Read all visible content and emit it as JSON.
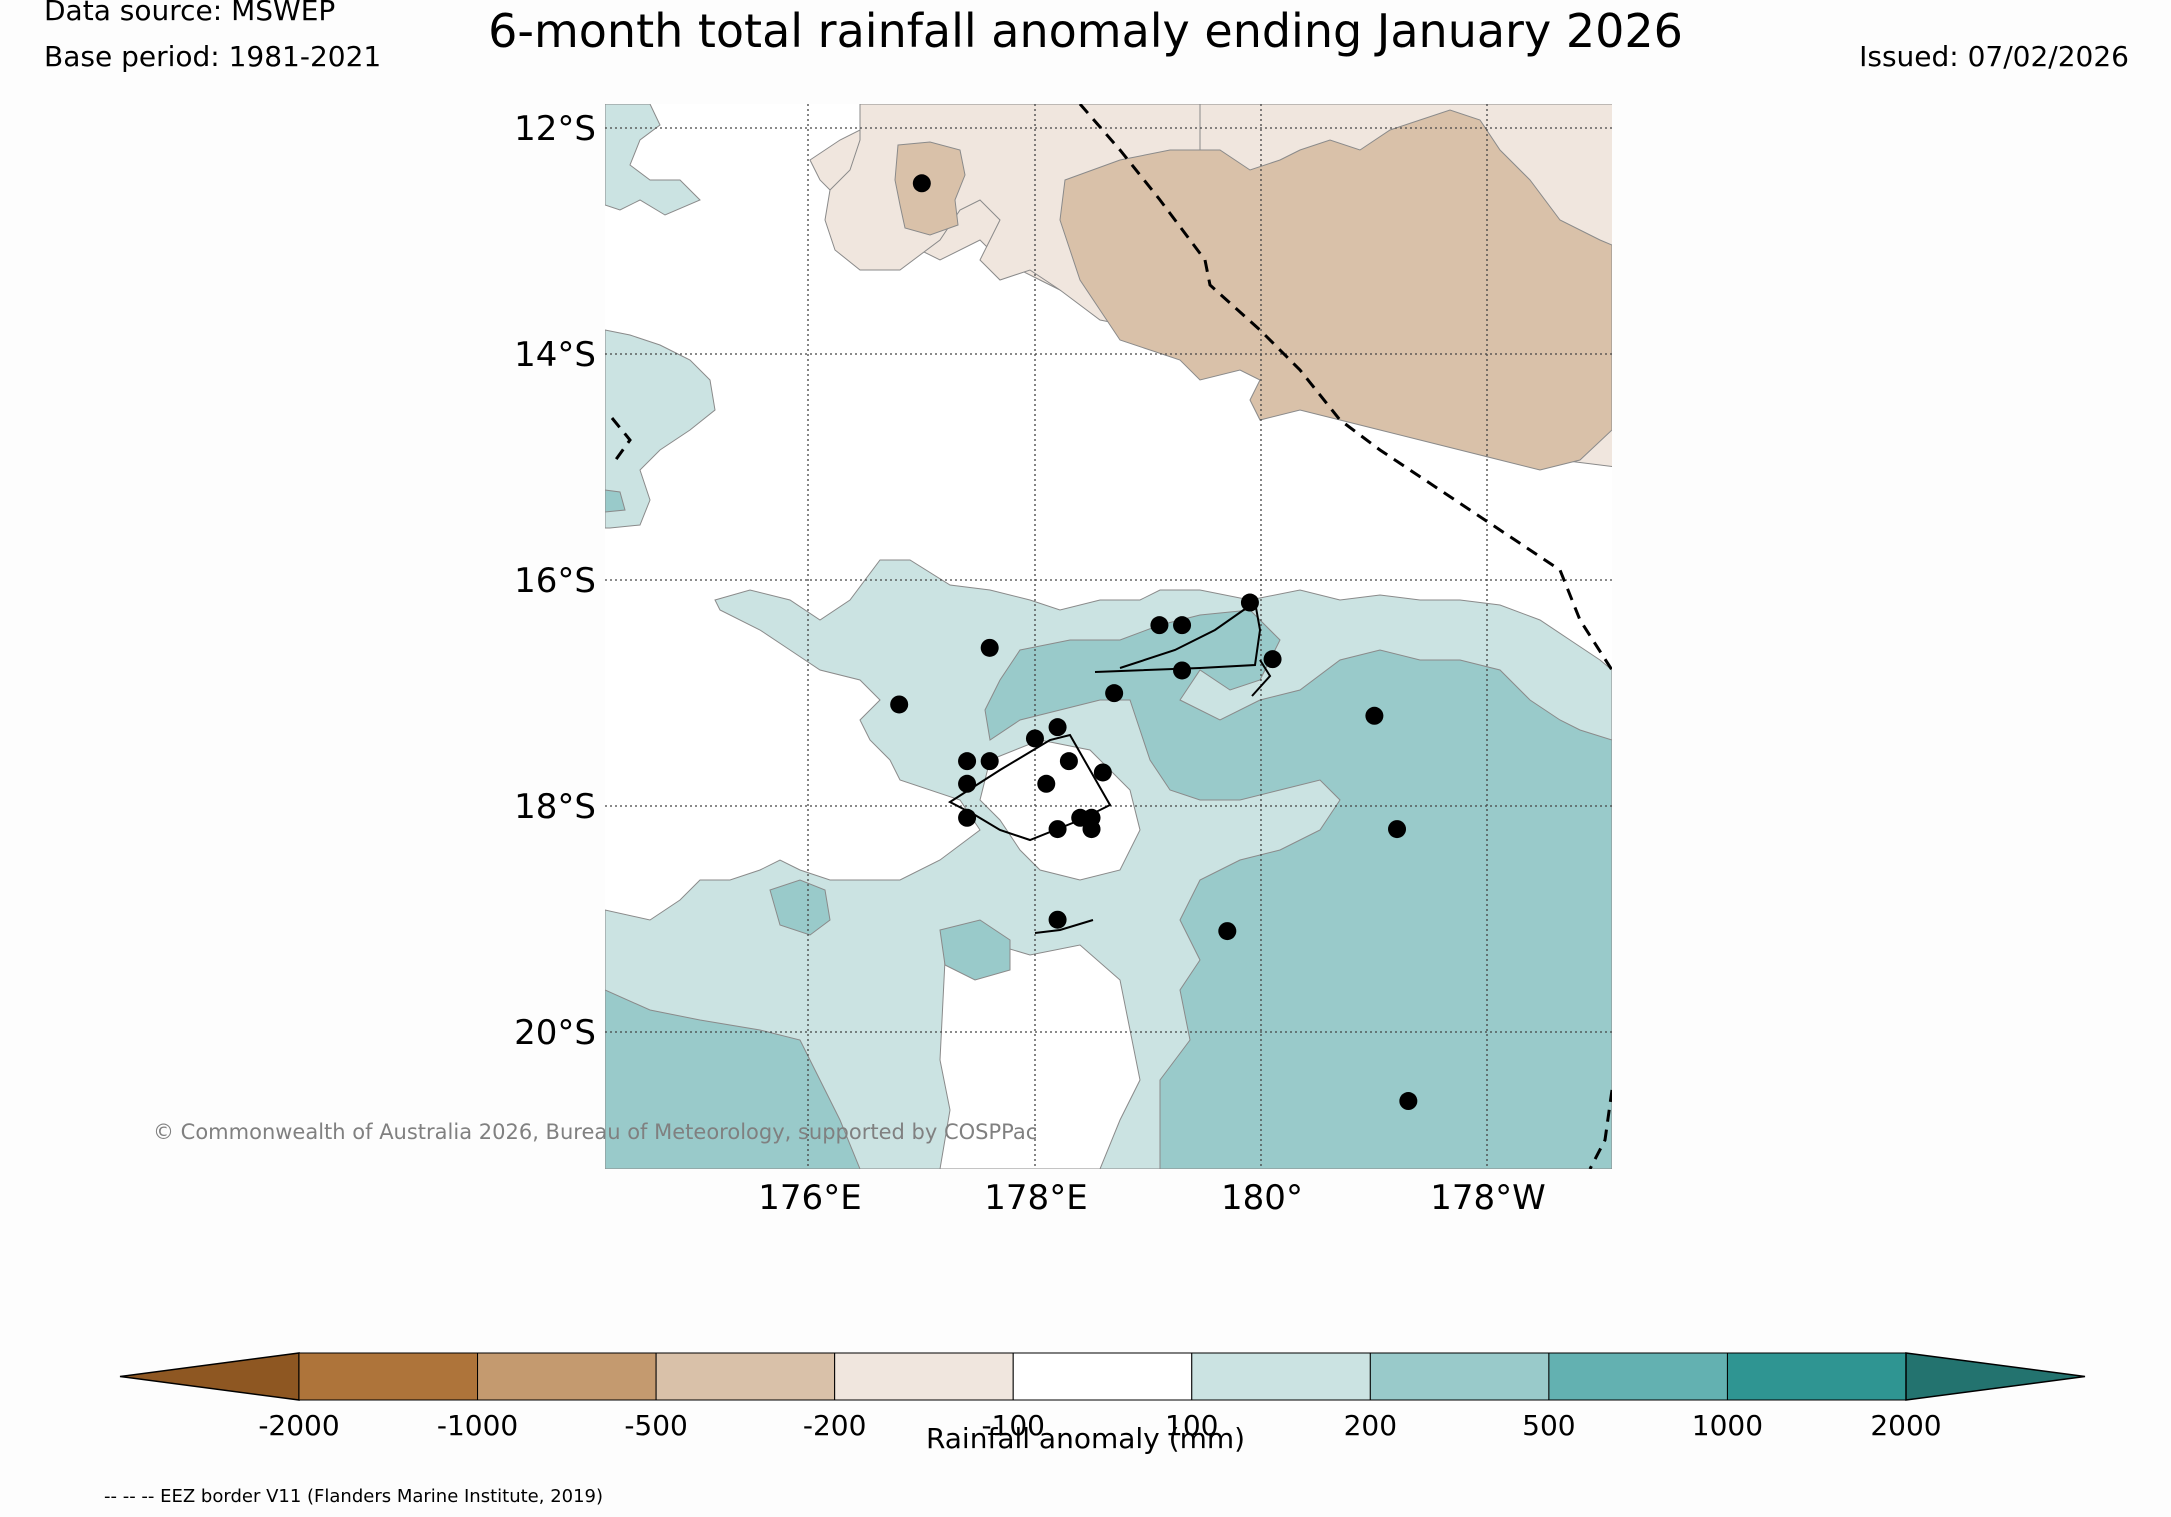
{
  "header": {
    "data_source": "Data source: MSWEP",
    "base_period": "Base period: 1981-2021",
    "title": "6-month total rainfall anomaly ending January 2026",
    "issued": "Issued: 07/02/2026"
  },
  "map": {
    "lat_labels": [
      "12°S",
      "14°S",
      "16°S",
      "18°S",
      "20°S"
    ],
    "lon_labels": [
      "176°E",
      "178°E",
      "180°",
      "178°W"
    ],
    "extent": {
      "lon_min": 174.2,
      "lon_max": 183.1,
      "lat_min": -21.2,
      "lat_max": -11.8
    },
    "stations_lonlat": [
      [
        177.0,
        -12.5
      ],
      [
        177.6,
        -16.6
      ],
      [
        176.8,
        -17.1
      ],
      [
        179.1,
        -16.4
      ],
      [
        179.3,
        -16.4
      ],
      [
        179.9,
        -16.2
      ],
      [
        180.1,
        -16.7
      ],
      [
        179.3,
        -16.8
      ],
      [
        178.7,
        -17.0
      ],
      [
        178.0,
        -17.4
      ],
      [
        178.2,
        -17.3
      ],
      [
        178.3,
        -17.6
      ],
      [
        178.1,
        -17.8
      ],
      [
        178.6,
        -17.7
      ],
      [
        177.4,
        -17.6
      ],
      [
        177.4,
        -17.8
      ],
      [
        177.6,
        -17.6
      ],
      [
        177.4,
        -18.1
      ],
      [
        178.4,
        -18.1
      ],
      [
        178.5,
        -18.1
      ],
      [
        178.5,
        -18.2
      ],
      [
        178.2,
        -18.2
      ],
      [
        178.2,
        -19.0
      ],
      [
        179.7,
        -19.1
      ],
      [
        181.0,
        -17.2
      ],
      [
        181.2,
        -18.2
      ],
      [
        181.3,
        -20.6
      ]
    ],
    "colors": {
      "neg200_100": "#f0e6de",
      "neg500_200": "#d9c1a9",
      "pos100_200": "#cbe3e2",
      "pos200_500": "#99caca"
    }
  },
  "copyright": "© Commonwealth of Australia 2026, Bureau of Meteorology, supported by COSPPac",
  "colorbar": {
    "label": "Rainfall anomaly (mm)",
    "ticks": [
      "-2000",
      "-1000",
      "-500",
      "-200",
      "-100",
      "100",
      "200",
      "500",
      "1000",
      "2000"
    ],
    "colors": [
      "#8e5722",
      "#ae743a",
      "#c49a6f",
      "#d9c1a9",
      "#f0e6de",
      "#ffffff",
      "#cbe3e2",
      "#99caca",
      "#63b1b1",
      "#2f9592",
      "#23736f"
    ]
  },
  "eez_note": "-- -- -- EEZ border V11 (Flanders Marine Institute, 2019)"
}
